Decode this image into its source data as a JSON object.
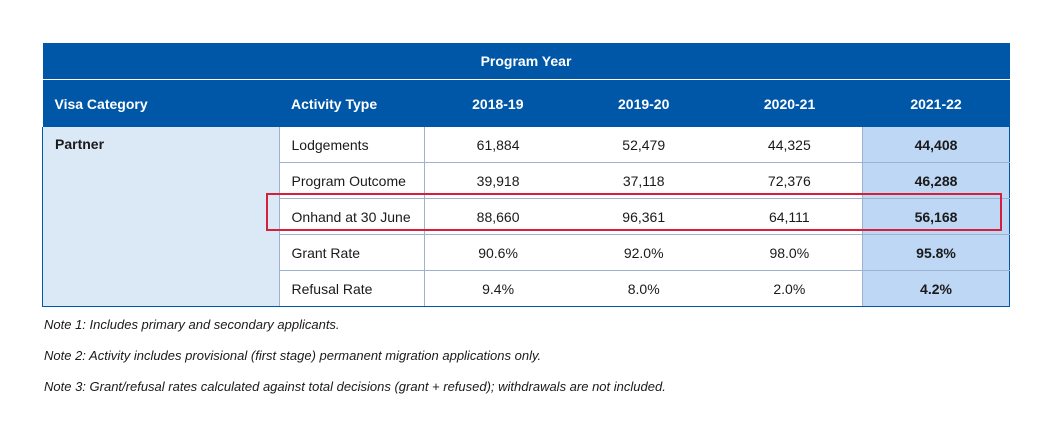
{
  "table": {
    "group_header": "Program Year",
    "columns": [
      "Visa Category",
      "Activity Type",
      "2018-19",
      "2019-20",
      "2020-21",
      "2021-22"
    ],
    "visa_category": "Partner",
    "rows": [
      {
        "activity": "Lodgements",
        "values": [
          "61,884",
          "52,479",
          "44,325",
          "44,408"
        ]
      },
      {
        "activity": "Program Outcome",
        "values": [
          "39,918",
          "37,118",
          "72,376",
          "46,288"
        ]
      },
      {
        "activity": "Onhand at 30 June",
        "values": [
          "88,660",
          "96,361",
          "64,111",
          "56,168"
        ]
      },
      {
        "activity": "Grant Rate",
        "values": [
          "90.6%",
          "92.0%",
          "98.0%",
          "95.8%"
        ]
      },
      {
        "activity": "Refusal Rate",
        "values": [
          "9.4%",
          "8.0%",
          "2.0%",
          "4.2%"
        ]
      }
    ],
    "highlight_color": "#d4203a",
    "header_color": "#0057a8"
  },
  "notes": [
    "Note 1: Includes primary and secondary applicants.",
    "Note 2: Activity includes provisional (first stage) permanent migration applications only.",
    "Note 3: Grant/refusal rates calculated against total decisions (grant + refused); withdrawals are not included."
  ]
}
